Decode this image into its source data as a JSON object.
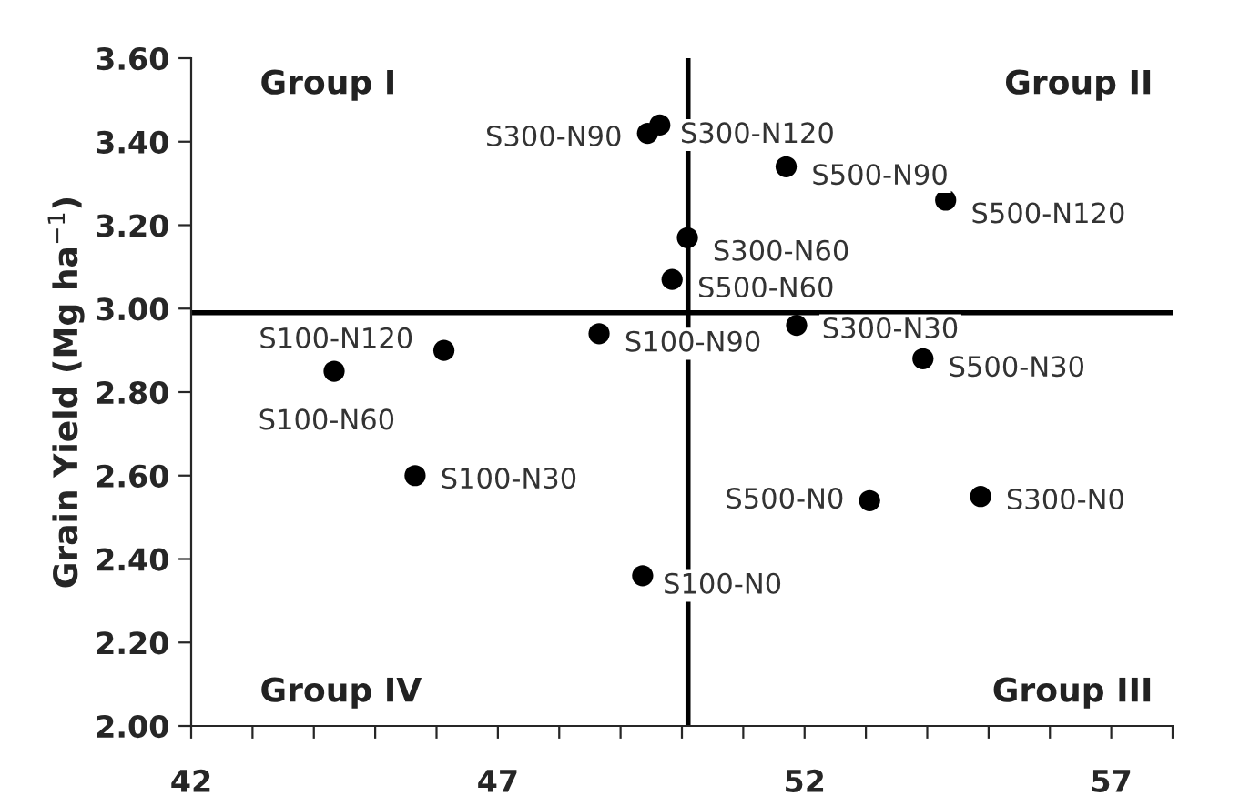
{
  "chart_data": {
    "type": "scatter",
    "ylabel": "Grain Yield (Mg ha$^{−1}$)",
    "x": [
      49.44,
      49.64,
      51.7,
      54.3,
      50.09,
      49.84,
      51.87,
      48.65,
      53.93,
      46.12,
      44.33,
      45.65,
      53.06,
      54.87,
      49.36
    ],
    "values": [
      3.42,
      3.44,
      3.34,
      3.26,
      3.17,
      3.07,
      2.96,
      2.94,
      2.88,
      2.9,
      2.85,
      2.6,
      2.54,
      2.55,
      2.36
    ],
    "value_labels": [
      "S300-N90",
      "S300-N120",
      "S500-N90",
      "S500-N120",
      "S300-N60",
      "S500-N60",
      "S300-N30",
      "S100-N90",
      "S500-N30",
      "S100-N120",
      "S100-N60",
      "S100-N30",
      "S500-N0",
      "S300-N0",
      "S100-N0"
    ],
    "color": "#000000",
    "marker": "circle",
    "xlim": [
      42,
      58
    ],
    "ylim": [
      2.0,
      3.6
    ],
    "xticks": [
      42,
      {
        "value": 43,
        "label": null
      },
      {
        "value": 44,
        "label": null
      },
      {
        "value": 45,
        "label": null
      },
      {
        "value": 46,
        "label": null
      },
      47,
      {
        "value": 48,
        "label": null
      },
      {
        "value": 49,
        "label": null
      },
      {
        "value": 50,
        "label": null
      },
      {
        "value": 51,
        "label": null
      },
      52,
      {
        "value": 53,
        "label": null
      },
      {
        "value": 54,
        "label": null
      },
      {
        "value": 55,
        "label": null
      },
      {
        "value": 56,
        "label": null
      },
      57,
      {
        "value": 58,
        "label": null
      }
    ],
    "yticks": [
      {
        "value": 2.0,
        "label": "2.00"
      },
      {
        "value": 2.2,
        "label": "2.20"
      },
      {
        "value": 2.4,
        "label": "2.40"
      },
      {
        "value": 2.6,
        "label": "2.60"
      },
      {
        "value": 2.8,
        "label": "2.80"
      },
      {
        "value": 3.0,
        "label": "3.00"
      },
      {
        "value": 3.2,
        "label": "3.20"
      },
      {
        "value": 3.4,
        "label": "3.40"
      },
      {
        "value": 3.6,
        "label": "3.60"
      }
    ],
    "ref_lines": [
      {
        "axis": "x",
        "value": 50.1,
        "color": "#000000"
      },
      {
        "axis": "y",
        "value": 2.99,
        "color": "#000000"
      }
    ],
    "annotations": [
      "Group I",
      "Group II",
      "Group III",
      "Group IV"
    ],
    "grid": false,
    "legend": false
  }
}
